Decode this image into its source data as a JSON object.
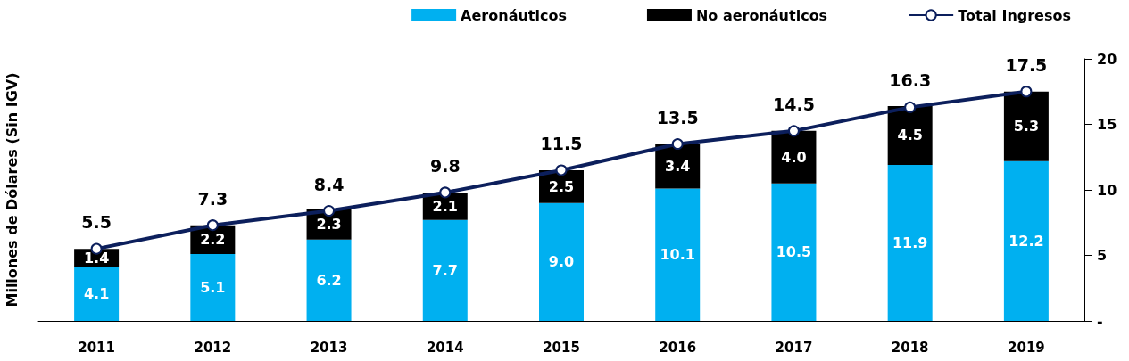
{
  "chart_data": {
    "type": "bar",
    "stacked": true,
    "ylabel": "Millones de Dólares (Sin IGV)",
    "categories": [
      "2011",
      "2012",
      "2013",
      "2014",
      "2015",
      "2016",
      "2017",
      "2018",
      "2019"
    ],
    "series": [
      {
        "name": "Aeronáuticos",
        "color": "#00b0f0",
        "values": [
          4.1,
          5.1,
          6.2,
          7.7,
          9.0,
          10.1,
          10.5,
          11.9,
          12.2
        ],
        "value_labels": [
          "4.1",
          "5.1",
          "6.2",
          "7.7",
          "9.0",
          "10.1",
          "10.5",
          "11.9",
          "12.2"
        ]
      },
      {
        "name": "No aeronáuticos",
        "color": "#000000",
        "values": [
          1.4,
          2.2,
          2.3,
          2.1,
          2.5,
          3.4,
          4.0,
          4.5,
          5.3
        ],
        "value_labels": [
          "1.4",
          "2.2",
          "2.3",
          "2.1",
          "2.5",
          "3.4",
          "4.0",
          "4.5",
          "5.3"
        ]
      },
      {
        "name": "Total Ingresos",
        "type": "line",
        "color": "#0c1f5c",
        "marker": "circle",
        "line_style": "solid",
        "values": [
          5.5,
          7.3,
          8.4,
          9.8,
          11.5,
          13.5,
          14.5,
          16.3,
          17.5
        ]
      }
    ],
    "data_labels": true,
    "ylim": [
      0,
      20
    ],
    "yticks": [
      {
        "value": 0,
        "label": "-"
      },
      5,
      10,
      15,
      20
    ],
    "grid": false,
    "legend": "top right"
  }
}
